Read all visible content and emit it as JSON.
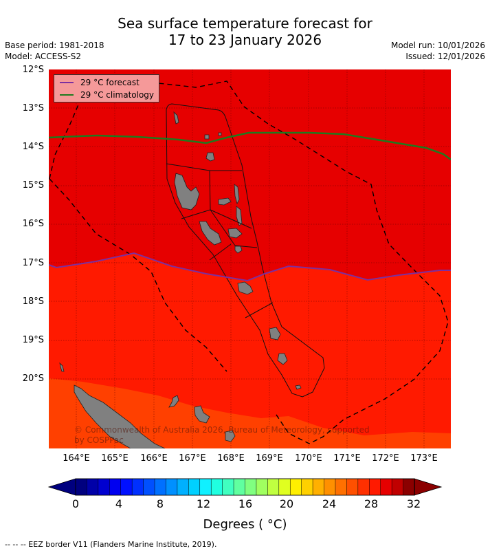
{
  "header": {
    "title_line1": "Sea surface temperature forecast for",
    "title_line2": "17 to 23 January 2026",
    "base_period": "Base period: 1981-2018",
    "model": "Model: ACCESS-S2",
    "model_run": "Model run: 10/01/2026",
    "issued": "Issued: 12/01/2026"
  },
  "map": {
    "latitude_labels": [
      "12°S",
      "13°S",
      "14°S",
      "15°S",
      "16°S",
      "17°S",
      "18°S",
      "19°S",
      "20°S"
    ],
    "longitude_labels": [
      "164°E",
      "165°E",
      "166°E",
      "167°E",
      "168°E",
      "169°E",
      "170°E",
      "171°E",
      "172°E",
      "173°E"
    ],
    "legend": {
      "forecast_label": "29 °C  forecast",
      "forecast_color": "#7b2fa0",
      "climatology_label": "29 °C  climatology",
      "climatology_color": "#1e7a1e"
    },
    "copyright_line1": "© Commonwealth of Australia 2026, Bureau of Meteorology, supported",
    "copyright_line2": "by COSPPac",
    "fill_colors": {
      "warm_29_30": "#e60000",
      "band_28_29": "#ff1a00",
      "band_27_28": "#ff4000",
      "land": "#808080"
    }
  },
  "colorbar": {
    "tick_labels": [
      "0",
      "4",
      "8",
      "12",
      "16",
      "20",
      "24",
      "28",
      "32"
    ],
    "title": "Degrees ( °C)",
    "colors": [
      "#00007f",
      "#0000a8",
      "#0000d0",
      "#0000f0",
      "#0010ff",
      "#0030ff",
      "#0050ff",
      "#0070ff",
      "#0090ff",
      "#00b0ff",
      "#00d0ff",
      "#10f0ff",
      "#20ffe0",
      "#40ffc0",
      "#60ffa0",
      "#80ff80",
      "#a0ff60",
      "#c0ff40",
      "#e0ff20",
      "#ffef00",
      "#ffd000",
      "#ffb000",
      "#ff9000",
      "#ff7000",
      "#ff5000",
      "#ff3000",
      "#ff1a00",
      "#e60000",
      "#c00000",
      "#8b0000"
    ],
    "under_color": "#00007f",
    "over_color": "#8b0000"
  },
  "footnote": "--  --  -- EEZ border V11 (Flanders Marine Institute, 2019)."
}
